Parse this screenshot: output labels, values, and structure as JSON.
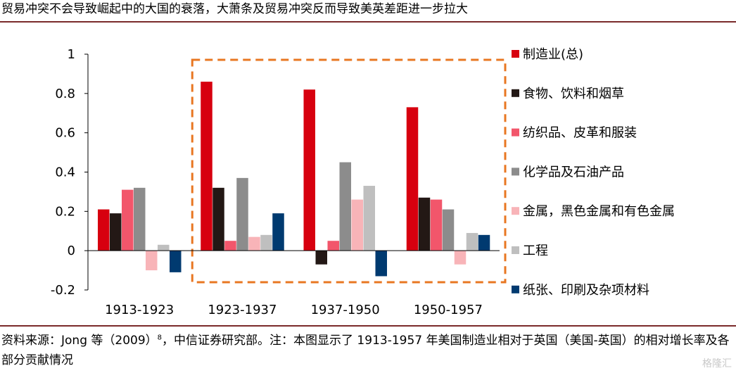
{
  "title": "贸易冲突不会导致崛起中的大国的衰落，大萧条及贸易冲突反而导致美英差距进一步拉大",
  "footnote": {
    "prefix": "资料来源：Jong 等（2009）",
    "superscript": "8",
    "suffix": "，中信证券研究部。注：本图显示了 1913-1957 年美国制造业相对于英国（美国-英国）的相对增长率及各部分贡献情况"
  },
  "watermark": "格隆汇",
  "chart_data": {
    "type": "bar",
    "categories": [
      "1913-1923",
      "1923-1937",
      "1937-1950",
      "1950-1957"
    ],
    "ylim": [
      -0.2,
      1
    ],
    "yticks": [
      -0.2,
      0,
      0.2,
      0.4,
      0.6,
      0.8,
      1
    ],
    "ytick_labels": [
      "-0.2",
      "0",
      "0.2",
      "0.4",
      "0.6",
      "0.8",
      "1"
    ],
    "legend_position": "right",
    "highlight": {
      "categories": [
        "1923-1937",
        "1937-1950",
        "1950-1957"
      ],
      "color": "#E87722",
      "style": "dashed"
    },
    "series": [
      {
        "name": "制造业(总)",
        "color": "#D7000F",
        "values": [
          0.21,
          0.86,
          0.82,
          0.73
        ]
      },
      {
        "name": "食物、饮料和烟草",
        "color": "#231815",
        "values": [
          0.19,
          0.32,
          -0.07,
          0.27
        ]
      },
      {
        "name": "纺织品、皮革和服装",
        "color": "#F2566B",
        "values": [
          0.31,
          0.05,
          0.05,
          0.26
        ]
      },
      {
        "name": "化学品及石油产品",
        "color": "#8C8C8C",
        "values": [
          0.32,
          0.37,
          0.45,
          0.21
        ]
      },
      {
        "name": "金属，黑色金属和有色金属",
        "color": "#F8B4B8",
        "values": [
          -0.1,
          0.07,
          0.26,
          -0.07
        ]
      },
      {
        "name": "工程",
        "color": "#BFBFBF",
        "values": [
          0.03,
          0.08,
          0.33,
          0.09
        ]
      },
      {
        "name": "纸张、印刷及杂项材料",
        "color": "#003A70",
        "values": [
          -0.11,
          0.19,
          -0.13,
          0.08
        ]
      }
    ]
  }
}
